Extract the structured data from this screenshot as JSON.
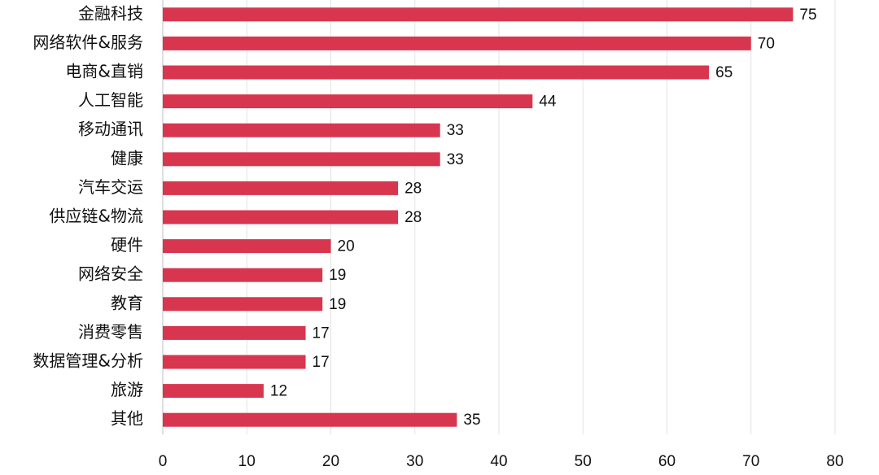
{
  "chart_data": {
    "type": "barh",
    "categories": [
      "金融科技",
      "网络软件&服务",
      "电商&直销",
      "人工智能",
      "移动通讯",
      "健康",
      "汽车交运",
      "供应链&物流",
      "硬件",
      "网络安全",
      "教育",
      "消费零售",
      "数据管理&分析",
      "旅游",
      "其他"
    ],
    "values": [
      75,
      70,
      65,
      44,
      33,
      33,
      28,
      28,
      20,
      19,
      19,
      17,
      17,
      12,
      35
    ],
    "color": "#d8364f",
    "xlim": [
      0,
      80
    ],
    "xticks": [
      0,
      10,
      20,
      30,
      40,
      50,
      60,
      70,
      80
    ],
    "grid": true
  }
}
